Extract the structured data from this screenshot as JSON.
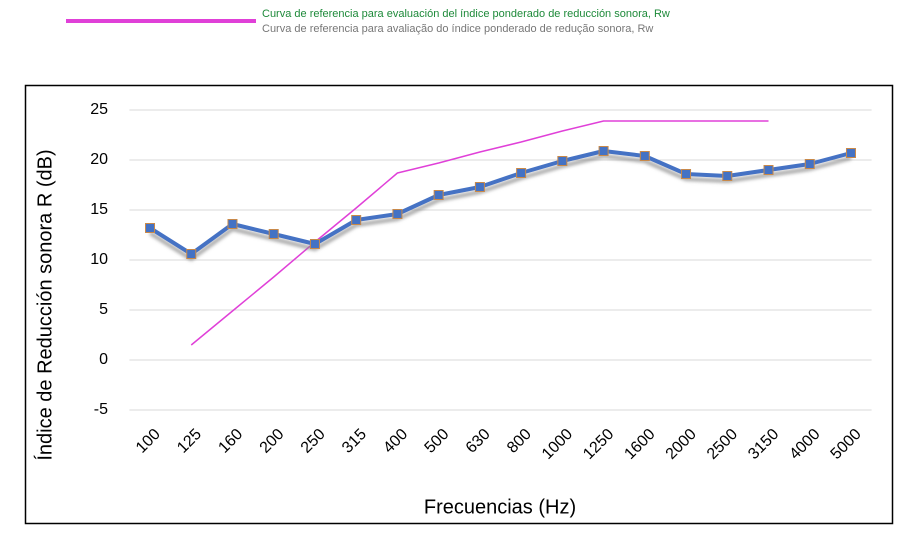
{
  "chart_data": {
    "type": "line",
    "legend": [
      "Curva de referencia para evaluación del índice ponderado de reducción sonora, Rw",
      "Curva de referencia para avaliação do índice ponderado de redução sonora, Rw"
    ],
    "y_label": "Índice de Reducción sonora R (dB)",
    "x_label": "Frecuencias (Hz)",
    "categories": [
      "100",
      "125",
      "160",
      "200",
      "250",
      "315",
      "400",
      "500",
      "630",
      "800",
      "1000",
      "1250",
      "1600",
      "2000",
      "2500",
      "3150",
      "4000",
      "5000"
    ],
    "series": [
      {
        "color": "#4472c4",
        "values": [
          13.2,
          10.6,
          13.6,
          12.6,
          11.6,
          14.0,
          14.6,
          16.5,
          17.3,
          18.7,
          19.9,
          20.9,
          20.4,
          18.6,
          18.4,
          19.0,
          19.6,
          20.7
        ]
      },
      {
        "color": "#e040d8",
        "values": [
          null,
          1.5,
          4.9,
          8.3,
          11.8,
          15.2,
          18.7,
          19.7,
          20.8,
          21.8,
          22.9,
          23.9,
          23.9,
          23.9,
          23.9,
          23.9,
          null,
          null
        ]
      }
    ],
    "ylim": [
      -5,
      25
    ],
    "yticks": [
      -5,
      0,
      5,
      10,
      15,
      20,
      25
    ],
    "grid": true
  }
}
